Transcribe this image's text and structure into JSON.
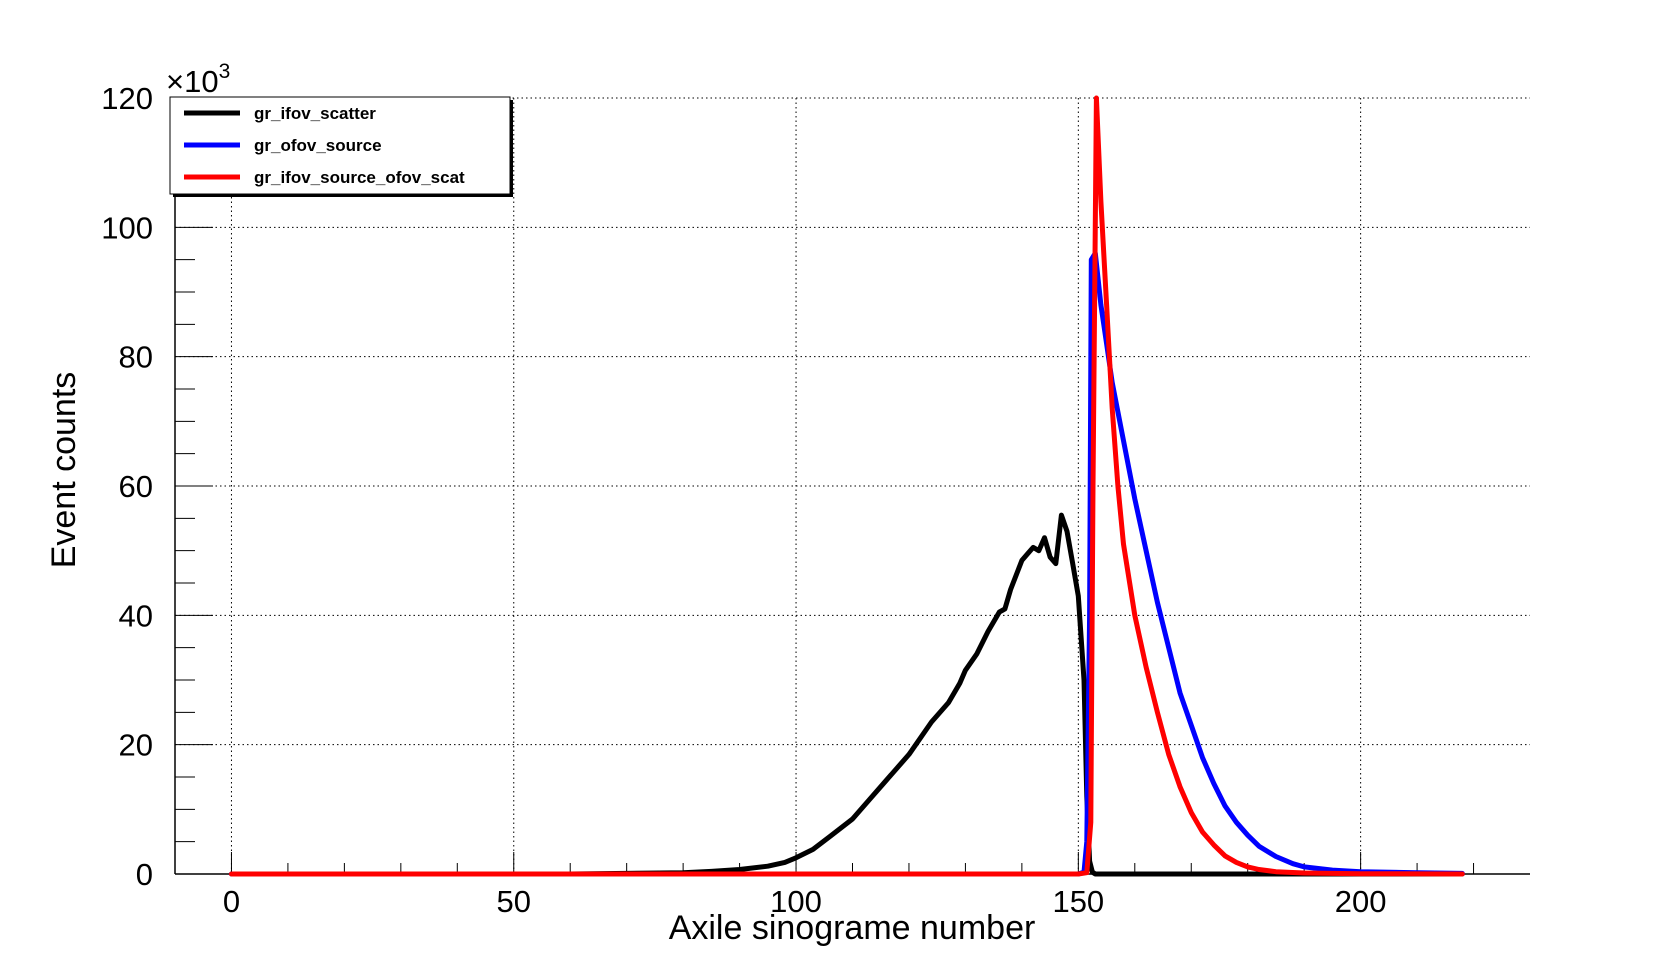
{
  "chart_data": {
    "type": "line",
    "title": "",
    "xlabel": "Axile sinograme number",
    "ylabel": "Event counts",
    "y_exponent_label": "×10",
    "y_exponent_power": "3",
    "xlim": [
      -10,
      230
    ],
    "ylim": [
      0,
      120
    ],
    "x_ticks": [
      0,
      50,
      100,
      150,
      200
    ],
    "y_ticks": [
      0,
      20,
      40,
      60,
      80,
      100,
      120
    ],
    "x_tick_labels": [
      "0",
      "50",
      "100",
      "150",
      "200"
    ],
    "y_tick_labels": [
      "0",
      "20",
      "40",
      "60",
      "80",
      "100",
      "120"
    ],
    "grid": true,
    "legend_position": "top-left",
    "series": [
      {
        "name": "gr_ifov_scatter",
        "color": "#000000",
        "x": [
          0,
          60,
          70,
          80,
          85,
          90,
          95,
          98,
          100,
          103,
          106,
          110,
          113,
          116,
          120,
          124,
          127,
          129,
          130,
          132,
          134,
          136,
          137,
          138,
          140,
          141,
          142,
          143,
          144,
          145,
          146,
          147,
          148,
          149,
          150,
          151,
          151.5,
          152,
          152.5,
          153,
          160,
          170,
          180,
          190,
          200,
          210,
          218
        ],
        "y": [
          0,
          0,
          0.1,
          0.2,
          0.4,
          0.7,
          1.2,
          1.8,
          2.5,
          3.8,
          5.8,
          8.5,
          11.5,
          14.5,
          18.5,
          23.5,
          26.5,
          29.5,
          31.5,
          34,
          37.5,
          40.5,
          41,
          44,
          48.5,
          49.5,
          50.5,
          50,
          52,
          49,
          48,
          55.5,
          53,
          48,
          43,
          30,
          12,
          2,
          0.3,
          0,
          0,
          0,
          0,
          0,
          0,
          0,
          0
        ]
      },
      {
        "name": "gr_ofov_source",
        "color": "#0000ff",
        "x": [
          0,
          140,
          150,
          151,
          151.5,
          152,
          152.3,
          153,
          154,
          155,
          156,
          158,
          160,
          162,
          164,
          166,
          168,
          170,
          172,
          174,
          176,
          178,
          180,
          182,
          185,
          188,
          190,
          195,
          200,
          210,
          218
        ],
        "y": [
          0,
          0,
          0,
          0.3,
          5,
          40,
          95,
          96,
          88,
          82,
          76,
          67,
          58,
          50,
          42,
          35,
          28,
          23,
          18,
          14,
          10.5,
          8,
          6,
          4.3,
          2.7,
          1.6,
          1.1,
          0.6,
          0.35,
          0.2,
          0.1
        ]
      },
      {
        "name": "gr_ifov_source_ofov_scat",
        "color": "#ff0000",
        "x": [
          0,
          140,
          150,
          151.5,
          152.2,
          152.6,
          153.2,
          154,
          155,
          156,
          157,
          158,
          160,
          162,
          164,
          166,
          168,
          170,
          172,
          174,
          176,
          178,
          180,
          182,
          185,
          190,
          200,
          218
        ],
        "y": [
          0,
          0,
          0,
          0.2,
          8,
          60,
          120,
          104,
          88,
          72,
          60,
          51,
          40,
          32,
          25,
          18.5,
          13.5,
          9.5,
          6.5,
          4.5,
          2.8,
          1.8,
          1.1,
          0.7,
          0.35,
          0.15,
          0.05,
          0
        ]
      }
    ]
  }
}
